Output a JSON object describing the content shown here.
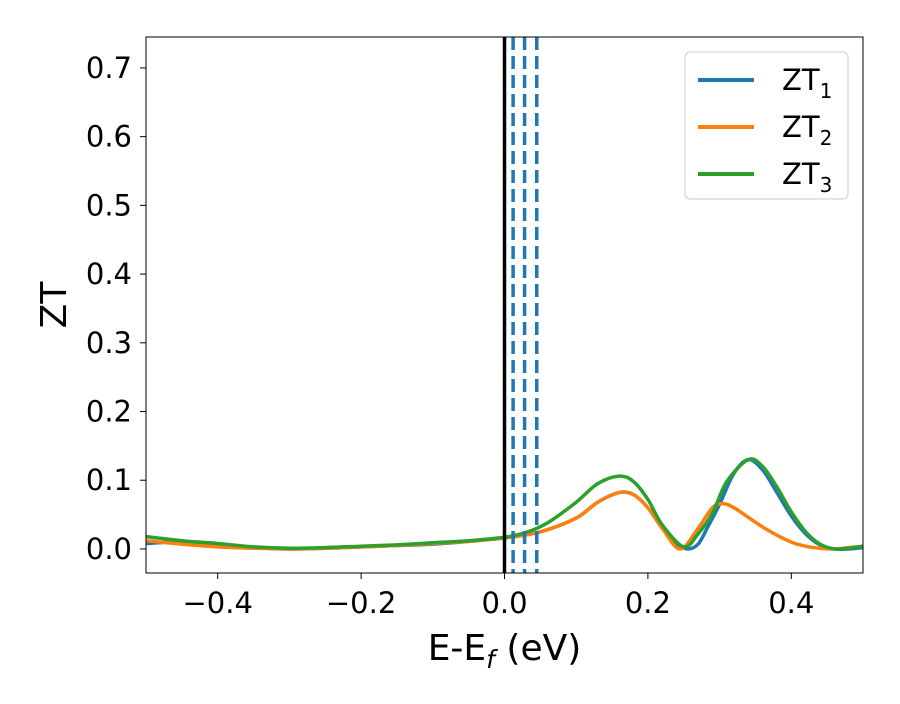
{
  "chart_data": {
    "type": "line",
    "xlabel": "E-E",
    "xlabel_sub": "f",
    "xlabel_suffix": " (eV)",
    "ylabel": "ZT",
    "xlim": [
      -0.5,
      0.5
    ],
    "ylim": [
      -0.035,
      0.745
    ],
    "x_ticks": [
      -0.4,
      -0.2,
      0.0,
      0.2,
      0.4
    ],
    "x_tick_labels": [
      "−0.4",
      "−0.2",
      "0.0",
      "0.2",
      "0.4"
    ],
    "y_ticks": [
      0.0,
      0.1,
      0.2,
      0.3,
      0.4,
      0.5,
      0.6,
      0.7
    ],
    "y_tick_labels": [
      "0.0",
      "0.1",
      "0.2",
      "0.3",
      "0.4",
      "0.5",
      "0.6",
      "0.7"
    ],
    "grid": false,
    "legend_position": "top-right",
    "vertical_lines": [
      {
        "x": 0.0,
        "color": "#000000",
        "style": "solid"
      },
      {
        "x": 0.012,
        "color": "#1f77b4",
        "style": "dashed"
      },
      {
        "x": 0.028,
        "color": "#1f77b4",
        "style": "dashed"
      },
      {
        "x": 0.045,
        "color": "#1f77b4",
        "style": "dashed"
      }
    ],
    "series": [
      {
        "name": "ZT",
        "name_sub": "1",
        "color": "#1f77b4",
        "x": [
          -0.5,
          -0.45,
          -0.4,
          -0.35,
          -0.3,
          -0.25,
          -0.2,
          -0.15,
          -0.1,
          -0.05,
          0.0,
          0.05,
          0.1,
          0.13,
          0.16,
          0.18,
          0.2,
          0.22,
          0.24,
          0.255,
          0.27,
          0.285,
          0.3,
          0.32,
          0.34,
          0.36,
          0.38,
          0.4,
          0.42,
          0.44,
          0.46,
          0.48,
          0.5
        ],
        "values": [
          0.008,
          0.01,
          0.006,
          0.002,
          0.0,
          0.001,
          0.003,
          0.005,
          0.007,
          0.011,
          0.016,
          0.025,
          0.045,
          0.068,
          0.082,
          0.079,
          0.06,
          0.03,
          0.008,
          0.0,
          0.007,
          0.035,
          0.065,
          0.11,
          0.13,
          0.115,
          0.082,
          0.048,
          0.022,
          0.006,
          0.0,
          0.0,
          0.002
        ]
      },
      {
        "name": "ZT",
        "name_sub": "2",
        "color": "#ff7f0e",
        "x": [
          -0.5,
          -0.45,
          -0.4,
          -0.35,
          -0.3,
          -0.25,
          -0.2,
          -0.15,
          -0.1,
          -0.05,
          0.0,
          0.05,
          0.1,
          0.13,
          0.16,
          0.18,
          0.2,
          0.22,
          0.245,
          0.27,
          0.29,
          0.305,
          0.32,
          0.34,
          0.36,
          0.38,
          0.4,
          0.42,
          0.44,
          0.46,
          0.48,
          0.5
        ],
        "values": [
          0.012,
          0.007,
          0.003,
          0.001,
          0.0,
          0.001,
          0.003,
          0.005,
          0.008,
          0.011,
          0.016,
          0.025,
          0.045,
          0.068,
          0.082,
          0.079,
          0.06,
          0.03,
          0.0,
          0.03,
          0.06,
          0.066,
          0.06,
          0.046,
          0.032,
          0.02,
          0.01,
          0.004,
          0.001,
          0.0,
          0.002,
          0.004
        ]
      },
      {
        "name": "ZT",
        "name_sub": "3",
        "color": "#2ca02c",
        "x": [
          -0.5,
          -0.45,
          -0.4,
          -0.35,
          -0.3,
          -0.25,
          -0.2,
          -0.15,
          -0.1,
          -0.05,
          0.0,
          0.03,
          0.06,
          0.1,
          0.13,
          0.16,
          0.18,
          0.2,
          0.22,
          0.25,
          0.27,
          0.29,
          0.31,
          0.34,
          0.36,
          0.38,
          0.4,
          0.42,
          0.44,
          0.46,
          0.48,
          0.5
        ],
        "values": [
          0.018,
          0.012,
          0.008,
          0.003,
          0.001,
          0.002,
          0.004,
          0.006,
          0.009,
          0.012,
          0.017,
          0.024,
          0.038,
          0.068,
          0.095,
          0.106,
          0.098,
          0.072,
          0.035,
          0.003,
          0.022,
          0.052,
          0.098,
          0.13,
          0.12,
          0.09,
          0.054,
          0.025,
          0.007,
          0.0,
          0.001,
          0.004
        ]
      }
    ]
  }
}
